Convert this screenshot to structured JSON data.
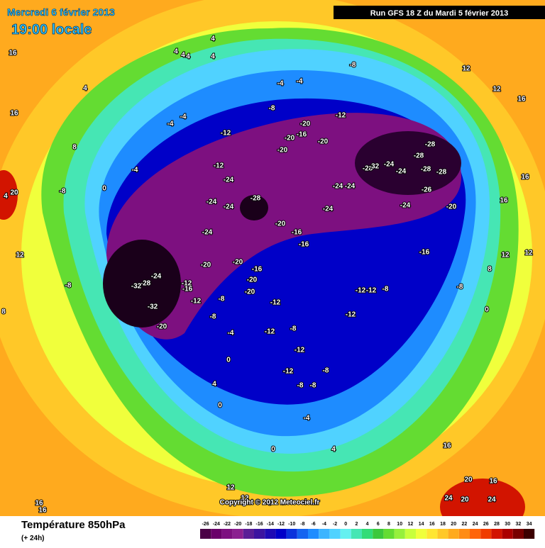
{
  "header": {
    "date": "Mercredi 6 février 2013",
    "time": "19:00 locale",
    "run": "Run GFS 18 Z du Mardi 5 février 2013"
  },
  "map": {
    "labels": [
      "16",
      "4",
      "4",
      "4",
      "4",
      "4",
      "4",
      "-4",
      "-4",
      "-4",
      "-4",
      "-8",
      "-8",
      "-12",
      "-12",
      "-20",
      "-20",
      "-16",
      "-20",
      "-20",
      "-12",
      "-24",
      "-24",
      "-24",
      "-28",
      "-24",
      "-20",
      "-16",
      "-16",
      "-24",
      "-24",
      "-24",
      "-28",
      "-32",
      "-24",
      "-24",
      "-28",
      "-28",
      "-28",
      "-28",
      "-26",
      "-24",
      "-20",
      "-16",
      "-20",
      "-20",
      "-16",
      "-12",
      "-16",
      "-24",
      "-28",
      "-32",
      "-32",
      "-20",
      "-12",
      "-20",
      "-20",
      "-8",
      "-8",
      "-12",
      "-12",
      "-12",
      "-8",
      "-12",
      "-12",
      "-8",
      "-12",
      "-4",
      "0",
      "-12",
      "-8",
      "-8",
      "-8",
      "-4",
      "4",
      "0",
      "0",
      "4",
      "-8",
      "0",
      "12",
      "12",
      "16",
      "16",
      "16",
      "12",
      "12",
      "8",
      "12",
      "12",
      "8",
      "16",
      "16",
      "4",
      "20",
      "8",
      "-4",
      "0",
      "8",
      "-8",
      "-8",
      "12",
      "16",
      "20",
      "20",
      "24",
      "24",
      "16",
      "16",
      "16"
    ]
  },
  "copyright": "Copyright © 2012 Meteociel.fr",
  "footer": {
    "title": "Température 850hPa",
    "step": "(+ 24h)",
    "scale": {
      "ticks": [
        -26,
        -24,
        -22,
        -20,
        -18,
        -16,
        -14,
        -12,
        -10,
        -8,
        -6,
        -4,
        -2,
        0,
        2,
        4,
        6,
        8,
        10,
        12,
        14,
        16,
        18,
        20,
        22,
        24,
        26,
        28,
        30,
        32,
        34
      ],
      "colors": [
        "#4b0046",
        "#6a006a",
        "#7d1080",
        "#8b2090",
        "#5a1e96",
        "#3c14a0",
        "#1e0ab4",
        "#0000c8",
        "#0a32dc",
        "#1464f0",
        "#1e8cff",
        "#3cb4ff",
        "#50d2ff",
        "#64f0f0",
        "#46e6b4",
        "#32dc78",
        "#3cc83c",
        "#64dc32",
        "#96f03c",
        "#c8ff3c",
        "#f0ff3c",
        "#ffe632",
        "#ffc828",
        "#ffaa1e",
        "#ff8c14",
        "#ff640a",
        "#f03c00",
        "#d21400",
        "#aa0000",
        "#780000",
        "#3c0000"
      ]
    }
  }
}
